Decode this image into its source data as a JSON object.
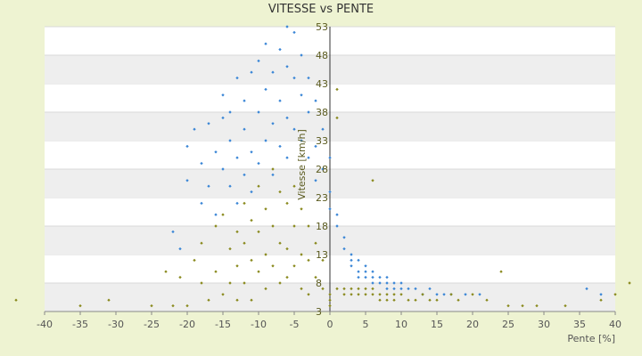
{
  "chart_data": {
    "type": "scatter",
    "title": "VITESSE vs PENTE",
    "xlabel": "Pente [%]",
    "ylabel": "Vitesse [km/h]",
    "xlim": [
      -40,
      40
    ],
    "ylim": [
      3,
      53
    ],
    "x_ticks": [
      -40,
      -35,
      -30,
      -25,
      -20,
      -15,
      -10,
      -5,
      0,
      5,
      10,
      15,
      20,
      25,
      30,
      35,
      40
    ],
    "y_ticks": [
      3,
      8,
      13,
      18,
      23,
      28,
      33,
      38,
      43,
      48,
      53
    ],
    "grid": "horizontal bands",
    "legend": "none",
    "series": [
      {
        "color": "#3a86d6",
        "points": [
          [
            -22,
            17
          ],
          [
            -21,
            14
          ],
          [
            -20,
            32
          ],
          [
            -20,
            26
          ],
          [
            -19,
            35
          ],
          [
            -18,
            22
          ],
          [
            -18,
            29
          ],
          [
            -17,
            36
          ],
          [
            -17,
            25
          ],
          [
            -16,
            31
          ],
          [
            -16,
            20
          ],
          [
            -15,
            41
          ],
          [
            -15,
            37
          ],
          [
            -15,
            28
          ],
          [
            -14,
            33
          ],
          [
            -14,
            25
          ],
          [
            -14,
            38
          ],
          [
            -13,
            30
          ],
          [
            -13,
            22
          ],
          [
            -13,
            44
          ],
          [
            -12,
            35
          ],
          [
            -12,
            27
          ],
          [
            -12,
            40
          ],
          [
            -11,
            31
          ],
          [
            -11,
            24
          ],
          [
            -11,
            45
          ],
          [
            -10,
            38
          ],
          [
            -10,
            29
          ],
          [
            -10,
            47
          ],
          [
            -9,
            42
          ],
          [
            -9,
            33
          ],
          [
            -9,
            50
          ],
          [
            -8,
            36
          ],
          [
            -8,
            45
          ],
          [
            -8,
            27
          ],
          [
            -7,
            49
          ],
          [
            -7,
            40
          ],
          [
            -7,
            32
          ],
          [
            -6,
            53
          ],
          [
            -6,
            46
          ],
          [
            -6,
            37
          ],
          [
            -6,
            30
          ],
          [
            -5,
            52
          ],
          [
            -5,
            44
          ],
          [
            -5,
            35
          ],
          [
            -4,
            48
          ],
          [
            -4,
            41
          ],
          [
            -4,
            33
          ],
          [
            -3,
            44
          ],
          [
            -3,
            38
          ],
          [
            -3,
            30
          ],
          [
            -2,
            40
          ],
          [
            -2,
            32
          ],
          [
            -2,
            26
          ],
          [
            -1,
            35
          ],
          [
            -1,
            28
          ],
          [
            0,
            30
          ],
          [
            0,
            24
          ],
          [
            0,
            21
          ],
          [
            1,
            20
          ],
          [
            1,
            18
          ],
          [
            2,
            16
          ],
          [
            2,
            14
          ],
          [
            3,
            13
          ],
          [
            3,
            12
          ],
          [
            3,
            11
          ],
          [
            4,
            12
          ],
          [
            4,
            10
          ],
          [
            4,
            9
          ],
          [
            5,
            11
          ],
          [
            5,
            10
          ],
          [
            5,
            9
          ],
          [
            6,
            10
          ],
          [
            6,
            9
          ],
          [
            6,
            8
          ],
          [
            7,
            9
          ],
          [
            7,
            8
          ],
          [
            8,
            9
          ],
          [
            8,
            8
          ],
          [
            8,
            7
          ],
          [
            9,
            8
          ],
          [
            9,
            7
          ],
          [
            10,
            8
          ],
          [
            10,
            7
          ],
          [
            11,
            7
          ],
          [
            12,
            7
          ],
          [
            13,
            6
          ],
          [
            14,
            7
          ],
          [
            15,
            6
          ],
          [
            16,
            6
          ],
          [
            17,
            6
          ],
          [
            19,
            6
          ],
          [
            21,
            6
          ],
          [
            36,
            7
          ],
          [
            38,
            6
          ]
        ]
      },
      {
        "color": "#8a8a1e",
        "points": [
          [
            -44,
            5
          ],
          [
            -35,
            4
          ],
          [
            -31,
            5
          ],
          [
            -25,
            4
          ],
          [
            -23,
            10
          ],
          [
            -22,
            4
          ],
          [
            -21,
            9
          ],
          [
            -20,
            4
          ],
          [
            -19,
            12
          ],
          [
            -18,
            8
          ],
          [
            -18,
            15
          ],
          [
            -17,
            5
          ],
          [
            -16,
            18
          ],
          [
            -16,
            10
          ],
          [
            -15,
            6
          ],
          [
            -15,
            20
          ],
          [
            -14,
            14
          ],
          [
            -14,
            8
          ],
          [
            -13,
            17
          ],
          [
            -13,
            11
          ],
          [
            -13,
            5
          ],
          [
            -12,
            22
          ],
          [
            -12,
            15
          ],
          [
            -12,
            8
          ],
          [
            -11,
            19
          ],
          [
            -11,
            12
          ],
          [
            -11,
            5
          ],
          [
            -10,
            25
          ],
          [
            -10,
            17
          ],
          [
            -10,
            10
          ],
          [
            -9,
            21
          ],
          [
            -9,
            13
          ],
          [
            -9,
            7
          ],
          [
            -8,
            28
          ],
          [
            -8,
            18
          ],
          [
            -8,
            11
          ],
          [
            -7,
            24
          ],
          [
            -7,
            15
          ],
          [
            -7,
            8
          ],
          [
            -6,
            22
          ],
          [
            -6,
            14
          ],
          [
            -6,
            9
          ],
          [
            -5,
            25
          ],
          [
            -5,
            18
          ],
          [
            -5,
            11
          ],
          [
            -4,
            21
          ],
          [
            -4,
            13
          ],
          [
            -4,
            7
          ],
          [
            -3,
            18
          ],
          [
            -3,
            12
          ],
          [
            -3,
            6
          ],
          [
            -2,
            15
          ],
          [
            -2,
            9
          ],
          [
            -1,
            12
          ],
          [
            -1,
            7
          ],
          [
            0,
            6
          ],
          [
            0,
            5
          ],
          [
            0,
            4
          ],
          [
            1,
            42
          ],
          [
            1,
            37
          ],
          [
            1,
            7
          ],
          [
            2,
            7
          ],
          [
            2,
            6
          ],
          [
            3,
            7
          ],
          [
            3,
            6
          ],
          [
            4,
            7
          ],
          [
            4,
            6
          ],
          [
            5,
            7
          ],
          [
            5,
            6
          ],
          [
            6,
            7
          ],
          [
            6,
            6
          ],
          [
            6,
            26
          ],
          [
            7,
            6
          ],
          [
            7,
            5
          ],
          [
            8,
            6
          ],
          [
            8,
            5
          ],
          [
            9,
            6
          ],
          [
            9,
            5
          ],
          [
            10,
            6
          ],
          [
            11,
            5
          ],
          [
            12,
            5
          ],
          [
            13,
            6
          ],
          [
            14,
            5
          ],
          [
            15,
            5
          ],
          [
            17,
            6
          ],
          [
            18,
            5
          ],
          [
            20,
            6
          ],
          [
            22,
            5
          ],
          [
            24,
            10
          ],
          [
            25,
            4
          ],
          [
            27,
            4
          ],
          [
            29,
            4
          ],
          [
            33,
            4
          ],
          [
            38,
            5
          ],
          [
            40,
            6
          ],
          [
            42,
            8
          ]
        ]
      }
    ]
  }
}
